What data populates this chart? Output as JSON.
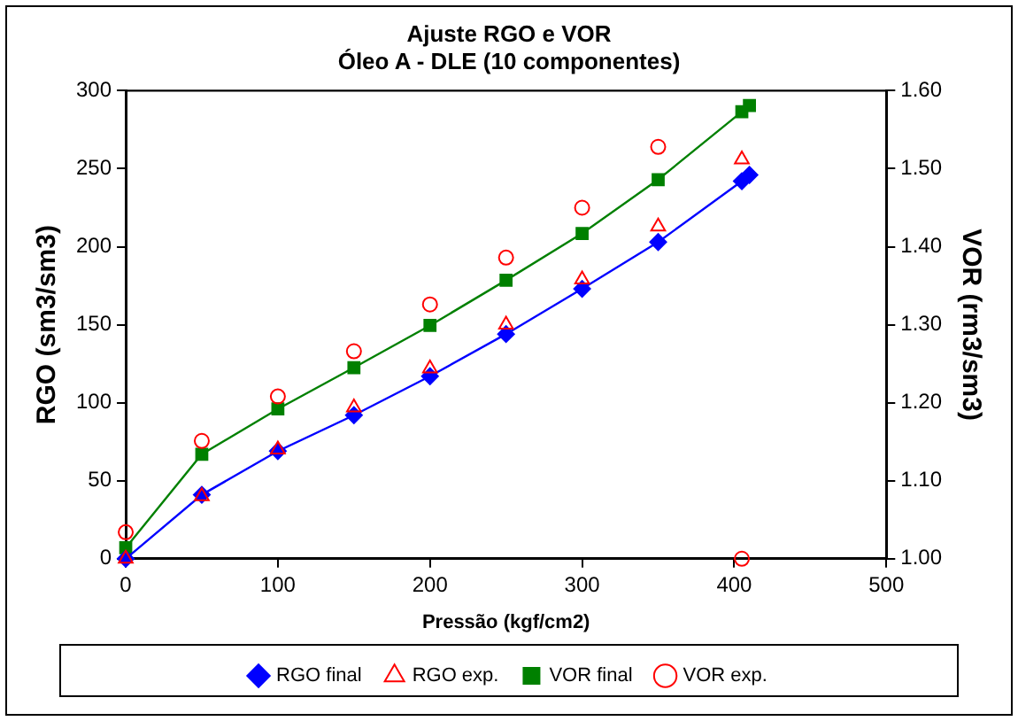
{
  "chart_data": {
    "type": "line",
    "title": "Ajuste RGO e VOR",
    "subtitle": "Óleo A - DLE (10 componentes)",
    "xlabel": "Pressão (kgf/cm2)",
    "ylabel": "RGO (sm3/sm3)",
    "y2label": "VOR (rm3/sm3)",
    "x": [
      0,
      50,
      100,
      150,
      200,
      250,
      300,
      350,
      405,
      410
    ],
    "series": [
      {
        "name": "RGO final",
        "type": "line",
        "color": "#0000ff",
        "marker": "diamond",
        "values": [
          0,
          41,
          69,
          92,
          117,
          144,
          173,
          203,
          242,
          246
        ]
      },
      {
        "name": "RGO exp.",
        "type": "scatter",
        "color": "#ff0000",
        "marker": "triangle",
        "x": [
          0,
          50,
          100,
          150,
          200,
          250,
          300,
          350,
          405
        ],
        "values": [
          0,
          40,
          70,
          97,
          122,
          150,
          179,
          213,
          256
        ]
      },
      {
        "name": "VOR final",
        "type": "line",
        "axis": "y2",
        "color": "#008000",
        "marker": "square",
        "values": [
          1.014,
          1.134,
          1.192,
          1.245,
          1.299,
          1.357,
          1.417,
          1.486,
          1.573,
          1.581
        ]
      },
      {
        "name": "VOR exp.",
        "type": "scatter",
        "axis": "y2",
        "color": "#ff0000",
        "marker": "circle",
        "x": [
          0,
          50,
          100,
          150,
          200,
          250,
          300,
          350,
          405
        ],
        "values": [
          1.034,
          1.151,
          1.208,
          1.266,
          1.326,
          1.386,
          1.45,
          1.528,
          1.0
        ]
      }
    ],
    "xlim": [
      0,
      500
    ],
    "xticks": [
      0,
      100,
      200,
      300,
      400,
      500
    ],
    "ylim": [
      0,
      300
    ],
    "yticks": [
      0,
      50,
      100,
      150,
      200,
      250,
      300
    ],
    "y2lim": [
      1.0,
      1.6
    ],
    "y2ticks": [
      {
        "value": 1.0,
        "label": "1.00"
      },
      {
        "value": 1.1,
        "label": "1.10"
      },
      {
        "value": 1.2,
        "label": "1.20"
      },
      {
        "value": 1.3,
        "label": "1.30"
      },
      {
        "value": 1.4,
        "label": "1.40"
      },
      {
        "value": 1.5,
        "label": "1.50"
      },
      {
        "value": 1.6,
        "label": "1.60"
      }
    ],
    "grid": false,
    "legend": "bottom",
    "line_style": "solid"
  }
}
